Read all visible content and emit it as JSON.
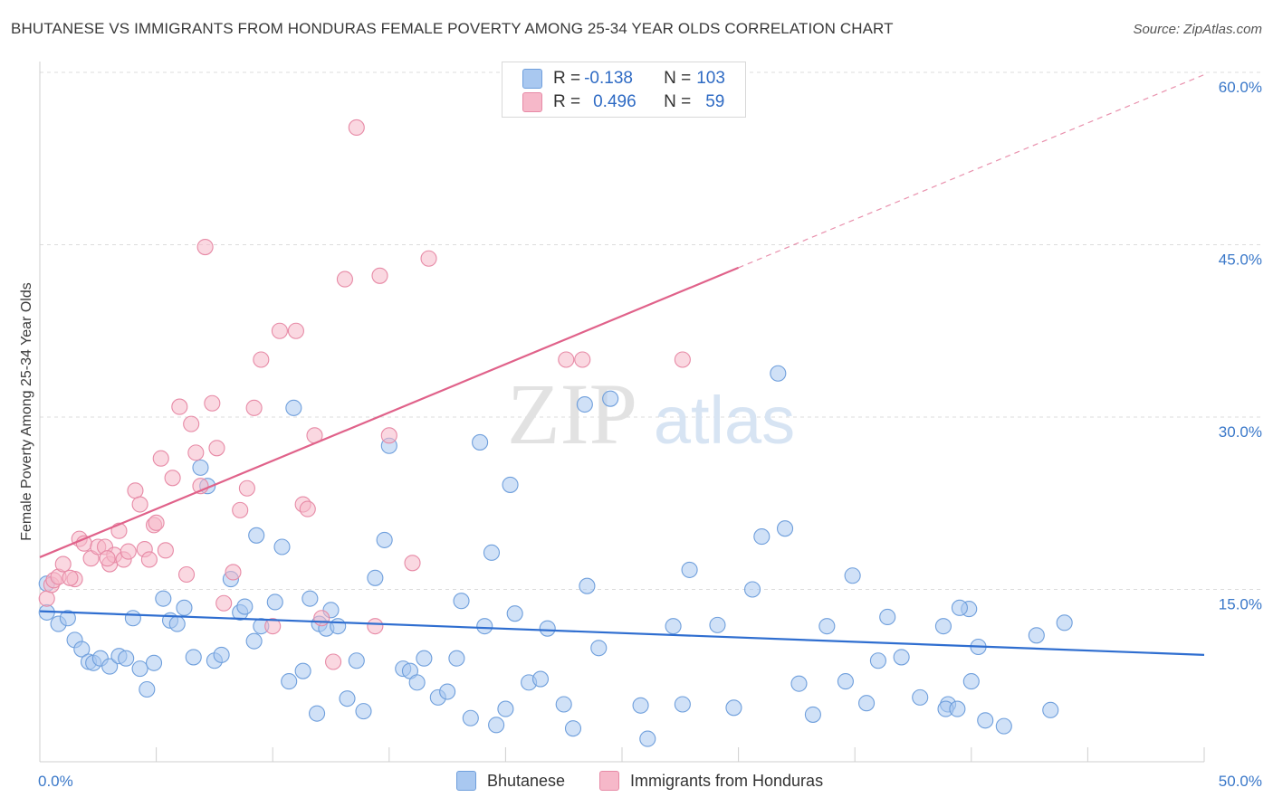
{
  "title": "BHUTANESE VS IMMIGRANTS FROM HONDURAS FEMALE POVERTY AMONG 25-34 YEAR OLDS CORRELATION CHART",
  "source": "Source: ZipAtlas.com",
  "watermark": {
    "zip": "ZIP",
    "atlas": "atlas"
  },
  "legend_top": {
    "rows": [
      {
        "r_label": "R = ",
        "r_value": "-0.138",
        "n_label": "N = ",
        "n_value": "103",
        "color": "#a9c8f0"
      },
      {
        "r_label": "R = ",
        "r_value": "0.496",
        "n_label": "N = ",
        "n_value": "59",
        "color": "#f6b8c9"
      }
    ]
  },
  "legend_bottom": {
    "items": [
      {
        "label": "Bhutanese",
        "color": "#a9c8f0"
      },
      {
        "label": "Immigrants from Honduras",
        "color": "#f6b8c9"
      }
    ]
  },
  "chart_data": {
    "type": "scatter",
    "title": "BHUTANESE VS IMMIGRANTS FROM HONDURAS FEMALE POVERTY AMONG 25-34 YEAR OLDS CORRELATION CHART",
    "xlabel": "",
    "ylabel": "Female Poverty Among 25-34 Year Olds",
    "xlim": [
      0,
      50
    ],
    "ylim": [
      0,
      60
    ],
    "x_tick_labels": [
      "0.0%",
      "50.0%"
    ],
    "y_ticks": [
      15,
      30,
      45,
      60
    ],
    "y_tick_labels": [
      "15.0%",
      "30.0%",
      "45.0%",
      "60.0%"
    ],
    "grid": true,
    "legend_position": "top-center",
    "series": [
      {
        "name": "Bhutanese",
        "color": "#a9c8f0",
        "edge_color": "#6f9fdc",
        "line_color": "#2f6ed0",
        "trend": {
          "x": [
            0,
            50
          ],
          "y": [
            13.1,
            9.3
          ]
        },
        "points": [
          [
            0.3,
            15.5
          ],
          [
            0.3,
            13.0
          ],
          [
            0.8,
            12.0
          ],
          [
            1.2,
            12.5
          ],
          [
            1.5,
            10.6
          ],
          [
            1.8,
            9.8
          ],
          [
            2.1,
            8.7
          ],
          [
            2.3,
            8.6
          ],
          [
            2.6,
            9.0
          ],
          [
            3.0,
            8.3
          ],
          [
            3.4,
            9.2
          ],
          [
            3.7,
            9.0
          ],
          [
            4.0,
            12.5
          ],
          [
            4.3,
            8.1
          ],
          [
            4.6,
            6.3
          ],
          [
            4.9,
            8.6
          ],
          [
            5.3,
            14.2
          ],
          [
            5.6,
            12.3
          ],
          [
            5.9,
            12.0
          ],
          [
            6.2,
            13.4
          ],
          [
            6.6,
            9.1
          ],
          [
            6.9,
            25.6
          ],
          [
            7.2,
            24.0
          ],
          [
            7.5,
            8.8
          ],
          [
            7.8,
            9.3
          ],
          [
            8.2,
            15.9
          ],
          [
            8.6,
            13.0
          ],
          [
            8.8,
            13.5
          ],
          [
            9.2,
            10.5
          ],
          [
            9.5,
            11.8
          ],
          [
            9.3,
            19.7
          ],
          [
            10.1,
            13.9
          ],
          [
            10.4,
            18.7
          ],
          [
            10.9,
            30.8
          ],
          [
            10.7,
            7.0
          ],
          [
            11.3,
            7.9
          ],
          [
            11.6,
            14.2
          ],
          [
            12.0,
            12.0
          ],
          [
            12.3,
            11.6
          ],
          [
            12.5,
            13.2
          ],
          [
            12.8,
            11.8
          ],
          [
            11.9,
            4.2
          ],
          [
            13.2,
            5.5
          ],
          [
            13.6,
            8.8
          ],
          [
            13.9,
            4.4
          ],
          [
            14.4,
            16.0
          ],
          [
            14.8,
            19.3
          ],
          [
            15.0,
            27.5
          ],
          [
            15.6,
            8.1
          ],
          [
            15.9,
            7.9
          ],
          [
            16.2,
            6.9
          ],
          [
            16.5,
            9.0
          ],
          [
            17.1,
            5.6
          ],
          [
            17.5,
            6.1
          ],
          [
            17.9,
            9.0
          ],
          [
            18.1,
            14.0
          ],
          [
            18.5,
            3.8
          ],
          [
            18.9,
            27.8
          ],
          [
            19.1,
            11.8
          ],
          [
            19.4,
            18.2
          ],
          [
            19.6,
            3.2
          ],
          [
            20.0,
            4.6
          ],
          [
            20.2,
            24.1
          ],
          [
            20.4,
            12.9
          ],
          [
            21.0,
            6.9
          ],
          [
            21.5,
            7.2
          ],
          [
            21.8,
            11.6
          ],
          [
            22.5,
            5.0
          ],
          [
            22.9,
            2.9
          ],
          [
            23.4,
            31.1
          ],
          [
            23.5,
            15.3
          ],
          [
            24.0,
            9.9
          ],
          [
            24.5,
            31.6
          ],
          [
            25.8,
            4.9
          ],
          [
            26.1,
            2.0
          ],
          [
            27.2,
            11.8
          ],
          [
            27.6,
            5.0
          ],
          [
            27.9,
            16.7
          ],
          [
            29.1,
            11.9
          ],
          [
            29.8,
            4.7
          ],
          [
            30.6,
            15.0
          ],
          [
            31.0,
            19.6
          ],
          [
            31.7,
            33.8
          ],
          [
            32.0,
            20.3
          ],
          [
            32.6,
            6.8
          ],
          [
            33.2,
            4.1
          ],
          [
            33.8,
            11.8
          ],
          [
            34.6,
            7.0
          ],
          [
            34.9,
            16.2
          ],
          [
            35.5,
            5.1
          ],
          [
            36.0,
            8.8
          ],
          [
            36.4,
            12.6
          ],
          [
            37.0,
            9.1
          ],
          [
            37.8,
            5.6
          ],
          [
            38.8,
            11.8
          ],
          [
            39.0,
            5.0
          ],
          [
            38.9,
            4.6
          ],
          [
            39.4,
            4.6
          ],
          [
            39.9,
            13.3
          ],
          [
            40.0,
            7.0
          ],
          [
            40.3,
            10.0
          ],
          [
            40.6,
            3.6
          ],
          [
            41.4,
            3.1
          ],
          [
            42.8,
            11.0
          ],
          [
            43.4,
            4.5
          ],
          [
            44.0,
            12.1
          ],
          [
            39.5,
            13.4
          ]
        ]
      },
      {
        "name": "Immigrants from Honduras",
        "color": "#f6b8c9",
        "edge_color": "#e78aa6",
        "line_color": "#e0628a",
        "trend": {
          "x": [
            0,
            30
          ],
          "y": [
            17.8,
            43.0
          ]
        },
        "trend_extension": {
          "x": [
            30,
            50
          ],
          "y": [
            43.0,
            59.8
          ]
        },
        "points": [
          [
            0.3,
            14.2
          ],
          [
            0.5,
            15.4
          ],
          [
            0.6,
            15.8
          ],
          [
            0.8,
            16.1
          ],
          [
            1.0,
            17.2
          ],
          [
            1.5,
            15.9
          ],
          [
            1.7,
            19.4
          ],
          [
            1.9,
            19.0
          ],
          [
            2.2,
            17.7
          ],
          [
            2.5,
            18.7
          ],
          [
            2.8,
            18.7
          ],
          [
            3.0,
            17.2
          ],
          [
            3.2,
            18.0
          ],
          [
            3.4,
            20.1
          ],
          [
            3.6,
            17.6
          ],
          [
            3.8,
            18.3
          ],
          [
            4.1,
            23.6
          ],
          [
            4.3,
            22.4
          ],
          [
            4.5,
            18.5
          ],
          [
            4.7,
            17.6
          ],
          [
            4.9,
            20.6
          ],
          [
            5.0,
            20.8
          ],
          [
            5.2,
            26.4
          ],
          [
            5.4,
            18.4
          ],
          [
            5.7,
            24.7
          ],
          [
            6.0,
            30.9
          ],
          [
            6.3,
            16.3
          ],
          [
            6.5,
            29.4
          ],
          [
            6.7,
            26.9
          ],
          [
            6.9,
            24.0
          ],
          [
            7.1,
            44.8
          ],
          [
            7.4,
            31.2
          ],
          [
            7.6,
            27.3
          ],
          [
            7.9,
            13.8
          ],
          [
            8.3,
            16.5
          ],
          [
            8.6,
            21.9
          ],
          [
            8.9,
            23.8
          ],
          [
            9.2,
            30.8
          ],
          [
            9.5,
            35.0
          ],
          [
            10.0,
            11.8
          ],
          [
            10.3,
            37.5
          ],
          [
            11.0,
            37.5
          ],
          [
            11.3,
            22.4
          ],
          [
            11.5,
            22.0
          ],
          [
            11.8,
            28.4
          ],
          [
            12.1,
            12.5
          ],
          [
            12.6,
            8.7
          ],
          [
            13.1,
            42.0
          ],
          [
            13.6,
            55.2
          ],
          [
            14.4,
            11.8
          ],
          [
            14.6,
            42.3
          ],
          [
            15.0,
            28.4
          ],
          [
            16.0,
            17.3
          ],
          [
            16.7,
            43.8
          ],
          [
            22.6,
            35.0
          ],
          [
            23.3,
            35.0
          ],
          [
            27.6,
            35.0
          ],
          [
            2.9,
            17.7
          ],
          [
            1.3,
            16.0
          ]
        ]
      }
    ]
  }
}
